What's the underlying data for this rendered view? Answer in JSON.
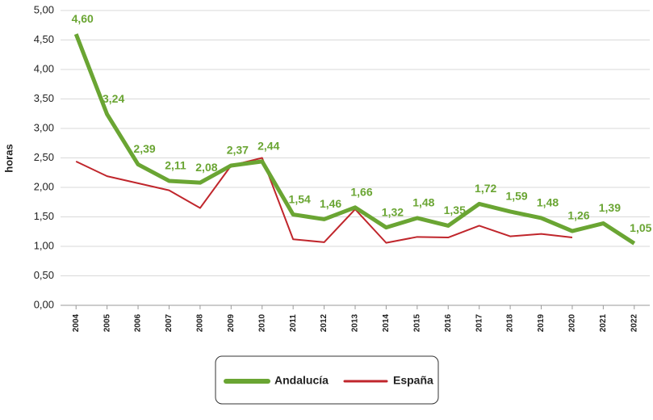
{
  "chart_data": {
    "type": "line",
    "y_label": "horas",
    "categories": [
      "2004",
      "2005",
      "2006",
      "2007",
      "2008",
      "2009",
      "2010",
      "2011",
      "2012",
      "2013",
      "2014",
      "2015",
      "2016",
      "2017",
      "2018",
      "2019",
      "2020",
      "2021",
      "2022"
    ],
    "series": [
      {
        "name": "Andalucía",
        "color": "#6aa533",
        "width": 5,
        "values": [
          4.6,
          3.24,
          2.39,
          2.11,
          2.08,
          2.37,
          2.44,
          1.54,
          1.46,
          1.66,
          1.32,
          1.48,
          1.35,
          1.72,
          1.59,
          1.48,
          1.26,
          1.39,
          1.05
        ],
        "value_labels": [
          "4,60",
          "3,24",
          "2,39",
          "2,11",
          "2,08",
          "2,37",
          "2,44",
          "1,54",
          "1,46",
          "1,66",
          "1,32",
          "1,48",
          "1,35",
          "1,72",
          "1,59",
          "1,48",
          "1,26",
          "1,39",
          "1,05"
        ]
      },
      {
        "name": "España",
        "color": "#c0262c",
        "width": 2,
        "values": [
          2.44,
          2.19,
          2.07,
          1.95,
          1.65,
          2.37,
          2.5,
          1.12,
          1.07,
          1.63,
          1.06,
          1.16,
          1.15,
          1.35,
          1.17,
          1.21,
          1.15,
          null,
          null
        ]
      }
    ],
    "ylim": [
      0,
      5
    ],
    "yticks": [
      {
        "value": 0,
        "label": "0,00"
      },
      {
        "value": 0.5,
        "label": "0,50"
      },
      {
        "value": 1,
        "label": "1,00"
      },
      {
        "value": 1.5,
        "label": "1,50"
      },
      {
        "value": 2,
        "label": "2,00"
      },
      {
        "value": 2.5,
        "label": "2,50"
      },
      {
        "value": 3,
        "label": "3,00"
      },
      {
        "value": 3.5,
        "label": "3,50"
      },
      {
        "value": 4,
        "label": "4,00"
      },
      {
        "value": 4.5,
        "label": "4,50"
      },
      {
        "value": 5,
        "label": "5,00"
      }
    ],
    "grid": true,
    "legend": "bottom"
  }
}
